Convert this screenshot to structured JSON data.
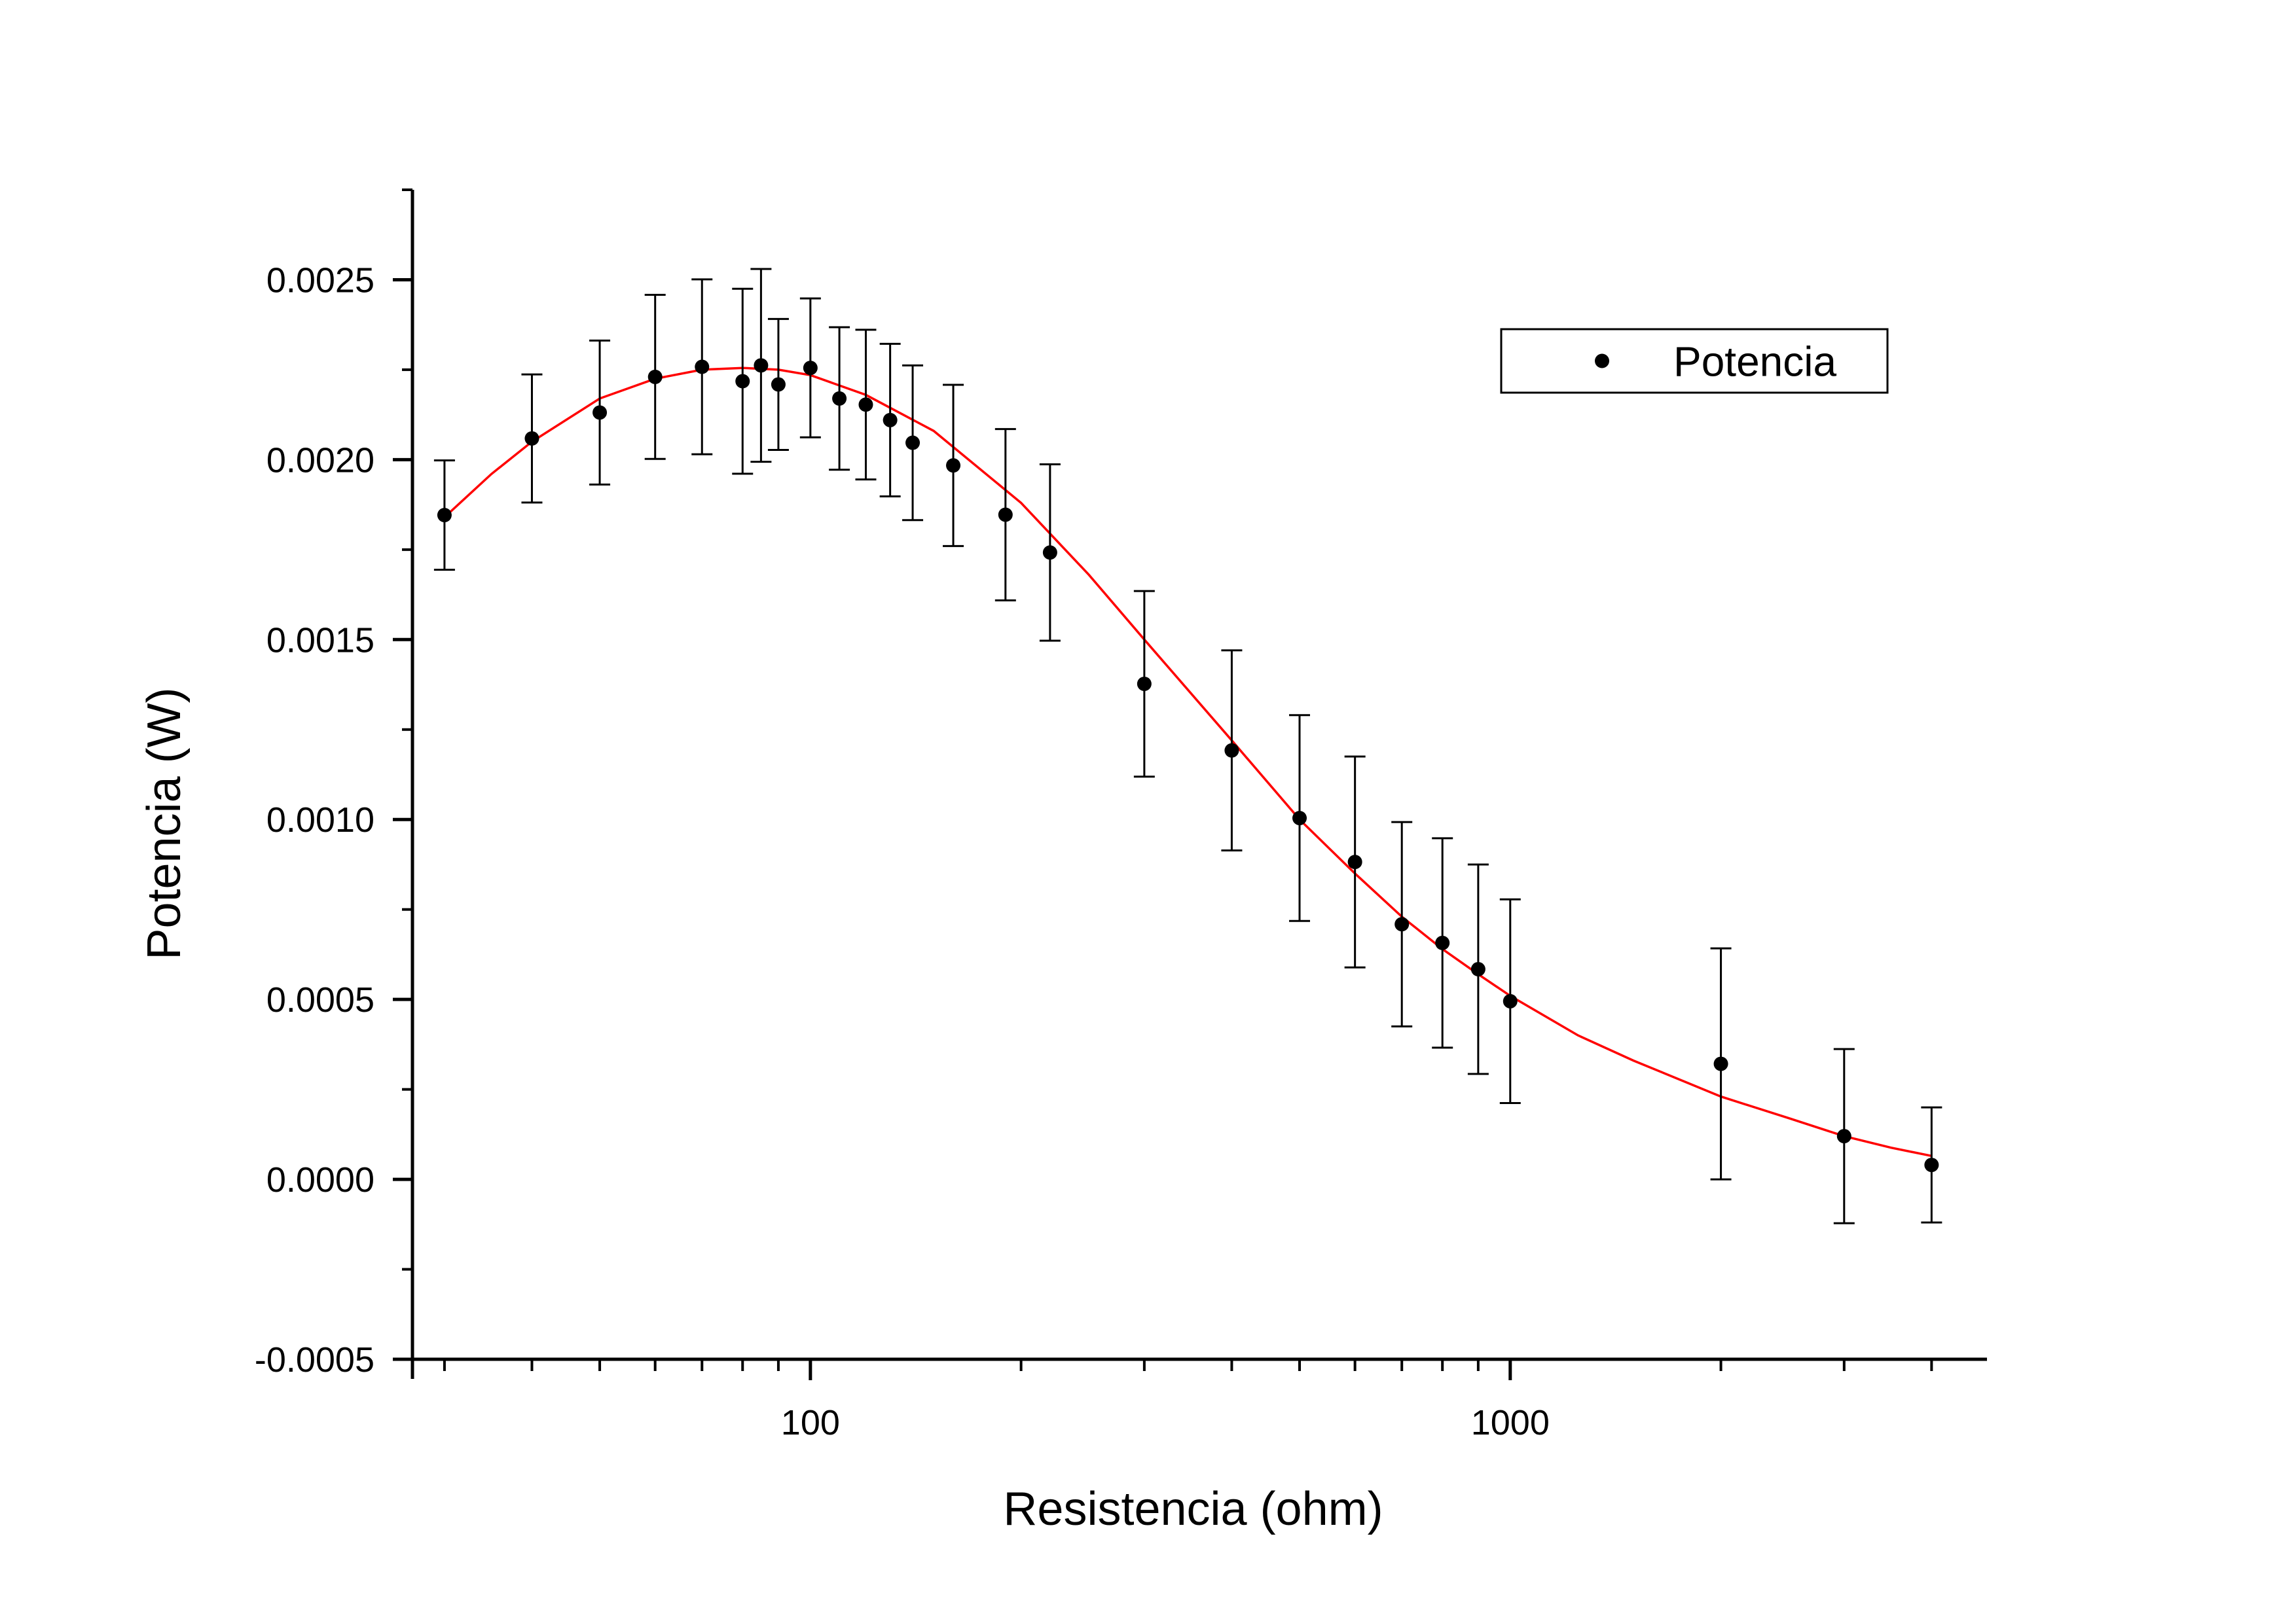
{
  "chart_data": {
    "type": "scatter",
    "xlabel": "Resistencia (ohm)",
    "ylabel": "Potencia (W)",
    "xscale": "log",
    "xlim": [
      27,
      4800
    ],
    "ylim": [
      -0.0005,
      0.00275
    ],
    "xticks": [
      {
        "value": 100,
        "label": "100"
      },
      {
        "value": 1000,
        "label": "1000"
      }
    ],
    "yticks": [
      {
        "value": -0.0005,
        "label": "-0.0005"
      },
      {
        "value": 0.0,
        "label": "0.0000"
      },
      {
        "value": 0.0005,
        "label": "0.0005"
      },
      {
        "value": 0.001,
        "label": "0.0010"
      },
      {
        "value": 0.0015,
        "label": "0.0015"
      },
      {
        "value": 0.002,
        "label": "0.0020"
      },
      {
        "value": 0.0025,
        "label": "0.0025"
      }
    ],
    "legend": {
      "position": "top-right",
      "entries": [
        "Potencia"
      ]
    },
    "series": [
      {
        "name": "Potencia",
        "marker": "circle",
        "color": "#000000",
        "points": [
          {
            "x": 30,
            "y": 0.001846,
            "err": 0.000152
          },
          {
            "x": 40,
            "y": 0.002059,
            "err": 0.000178
          },
          {
            "x": 50,
            "y": 0.002131,
            "err": 0.0002
          },
          {
            "x": 60,
            "y": 0.00223,
            "err": 0.000228
          },
          {
            "x": 70,
            "y": 0.002258,
            "err": 0.000243
          },
          {
            "x": 80,
            "y": 0.002218,
            "err": 0.000257
          },
          {
            "x": 85,
            "y": 0.002262,
            "err": 0.000268
          },
          {
            "x": 90,
            "y": 0.002209,
            "err": 0.000182
          },
          {
            "x": 100,
            "y": 0.002255,
            "err": 0.000193
          },
          {
            "x": 110,
            "y": 0.00217,
            "err": 0.000198
          },
          {
            "x": 120,
            "y": 0.002153,
            "err": 0.000208
          },
          {
            "x": 130,
            "y": 0.00211,
            "err": 0.000212
          },
          {
            "x": 140,
            "y": 0.002047,
            "err": 0.000215
          },
          {
            "x": 160,
            "y": 0.001984,
            "err": 0.000224
          },
          {
            "x": 190,
            "y": 0.001847,
            "err": 0.000238
          },
          {
            "x": 220,
            "y": 0.001742,
            "err": 0.000245
          },
          {
            "x": 300,
            "y": 0.001377,
            "err": 0.000258
          },
          {
            "x": 400,
            "y": 0.001192,
            "err": 0.000278
          },
          {
            "x": 500,
            "y": 0.001004,
            "err": 0.000286
          },
          {
            "x": 600,
            "y": 0.000882,
            "err": 0.000293
          },
          {
            "x": 700,
            "y": 0.000709,
            "err": 0.000284
          },
          {
            "x": 800,
            "y": 0.000657,
            "err": 0.000291
          },
          {
            "x": 900,
            "y": 0.000584,
            "err": 0.000291
          },
          {
            "x": 1000,
            "y": 0.000495,
            "err": 0.000283
          },
          {
            "x": 2000,
            "y": 0.000321,
            "err": 0.000321
          },
          {
            "x": 3000,
            "y": 0.00012,
            "err": 0.000242
          },
          {
            "x": 4000,
            "y": 4e-05,
            "err": 0.00016
          }
        ]
      },
      {
        "kind": "fit",
        "color": "#ff0000",
        "points": [
          {
            "x": 30,
            "y": 0.00184
          },
          {
            "x": 35,
            "y": 0.00196
          },
          {
            "x": 40,
            "y": 0.00205
          },
          {
            "x": 50,
            "y": 0.00217
          },
          {
            "x": 60,
            "y": 0.002225
          },
          {
            "x": 70,
            "y": 0.00225
          },
          {
            "x": 80,
            "y": 0.002255
          },
          {
            "x": 90,
            "y": 0.00225
          },
          {
            "x": 100,
            "y": 0.002235
          },
          {
            "x": 120,
            "y": 0.00218
          },
          {
            "x": 150,
            "y": 0.00208
          },
          {
            "x": 200,
            "y": 0.00188
          },
          {
            "x": 250,
            "y": 0.00168
          },
          {
            "x": 300,
            "y": 0.0015
          },
          {
            "x": 400,
            "y": 0.00122
          },
          {
            "x": 500,
            "y": 0.001
          },
          {
            "x": 600,
            "y": 0.00085
          },
          {
            "x": 700,
            "y": 0.00073
          },
          {
            "x": 800,
            "y": 0.00064
          },
          {
            "x": 900,
            "y": 0.00057
          },
          {
            "x": 1000,
            "y": 0.00051
          },
          {
            "x": 1250,
            "y": 0.0004
          },
          {
            "x": 1500,
            "y": 0.00033
          },
          {
            "x": 2000,
            "y": 0.00023
          },
          {
            "x": 2500,
            "y": 0.00017
          },
          {
            "x": 3000,
            "y": 0.00012
          },
          {
            "x": 3500,
            "y": 8.8e-05
          },
          {
            "x": 4000,
            "y": 6.5e-05
          }
        ]
      }
    ]
  }
}
